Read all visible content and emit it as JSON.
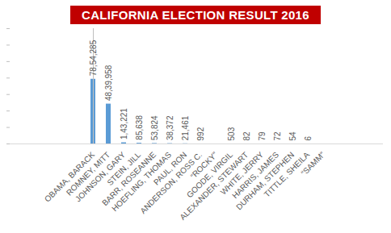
{
  "chart_data": {
    "type": "bar",
    "title": "CALIFORNIA ELECTION RESULT 2016",
    "categories": [
      "OBAMA, BARACK",
      "ROMNEY, MITT",
      "JOHNSON, GARY",
      "STEIN, JILL",
      "BARR, ROSEANNE",
      "HOEFLING, THOMAS",
      "PAUL, RON",
      "ANDERSON, ROSS C.",
      "“ROCKY”",
      "GOODE, VIRGIL",
      "ALEXANDER, STEWART",
      "WHITE, JERRY",
      "HARRIS, JAMES",
      "DURHAM, STEPHEN",
      "TITTLE, SHEILA",
      "“SAMM”"
    ],
    "values": [
      7854285,
      4839958,
      143221,
      85638,
      53824,
      38372,
      21461,
      992,
      null,
      503,
      82,
      79,
      72,
      54,
      6,
      null
    ],
    "value_labels": [
      "78,54,285",
      "48,39,958",
      "1,43,221",
      "85,638",
      "53,824",
      "38,372",
      "21,461",
      "992",
      null,
      "503",
      "82",
      "79",
      "72",
      "54",
      "6",
      null
    ],
    "color": "#5b9bd5",
    "ylim": [
      0,
      14000000
    ],
    "yticks": [
      0,
      2000000,
      4000000,
      6000000,
      8000000,
      10000000,
      12000000,
      14000000
    ],
    "grid": false,
    "data_labels": true,
    "tick_labels": "x"
  }
}
